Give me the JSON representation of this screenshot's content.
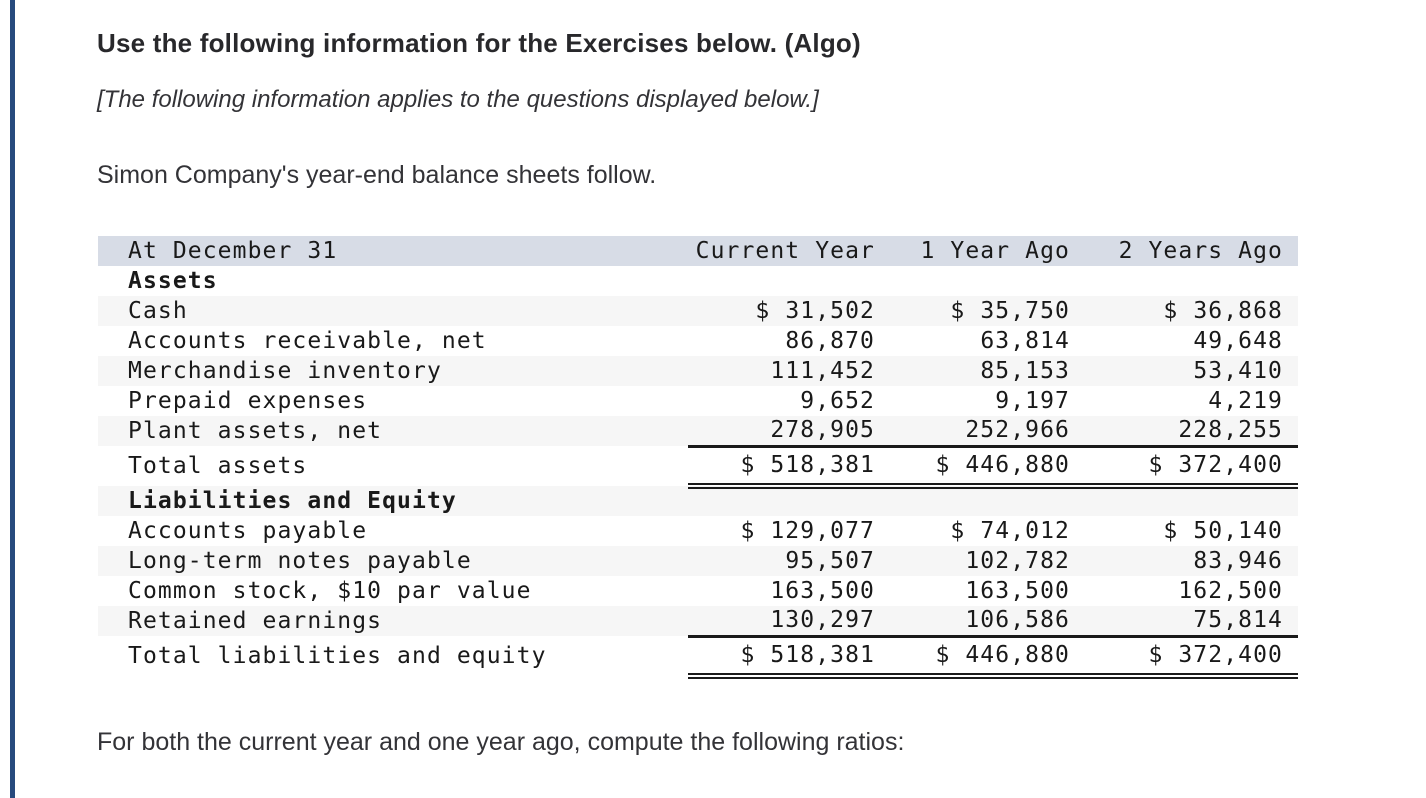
{
  "colors": {
    "accent_bar": "#274a7d",
    "table_header_bg": "#d7dce6",
    "table_stripe_bg": "#f6f6f6"
  },
  "intro": {
    "title": "Use the following information for the Exercises below. (Algo)",
    "note": "[The following information applies to the questions displayed below.]",
    "lead": "Simon Company's year-end balance sheets follow."
  },
  "balance_sheet": {
    "columns": [
      "At December 31",
      "Current Year",
      "1 Year Ago",
      "2 Years Ago"
    ],
    "rows": [
      {
        "label": "Assets",
        "style": "section",
        "values": [
          "",
          "",
          ""
        ]
      },
      {
        "label": "Cash",
        "style": "",
        "values": [
          "$ 31,502",
          "$ 35,750",
          "$ 36,868"
        ]
      },
      {
        "label": "Accounts receivable, net",
        "style": "",
        "values": [
          "86,870",
          "63,814",
          "49,648"
        ]
      },
      {
        "label": "Merchandise inventory",
        "style": "",
        "values": [
          "111,452",
          "85,153",
          "53,410"
        ]
      },
      {
        "label": "Prepaid expenses",
        "style": "",
        "values": [
          "9,652",
          "9,197",
          "4,219"
        ]
      },
      {
        "label": "Plant assets, net",
        "style": "rule-below",
        "values": [
          "278,905",
          "252,966",
          "228,255"
        ]
      },
      {
        "label": "Total assets",
        "style": "total",
        "values": [
          "$ 518,381",
          "$ 446,880",
          "$ 372,400"
        ]
      },
      {
        "label": "Liabilities and Equity",
        "style": "section",
        "values": [
          "",
          "",
          ""
        ]
      },
      {
        "label": "Accounts payable",
        "style": "",
        "values": [
          "$ 129,077",
          "$ 74,012",
          "$ 50,140"
        ]
      },
      {
        "label": "Long-term notes payable",
        "style": "",
        "values": [
          "95,507",
          "102,782",
          "83,946"
        ]
      },
      {
        "label": "Common stock, $10 par value",
        "style": "",
        "values": [
          "163,500",
          "163,500",
          "162,500"
        ]
      },
      {
        "label": "Retained earnings",
        "style": "rule-below",
        "values": [
          "130,297",
          "106,586",
          "75,814"
        ]
      },
      {
        "label": "Total liabilities and equity",
        "style": "total",
        "values": [
          "$ 518,381",
          "$ 446,880",
          "$ 372,400"
        ]
      }
    ]
  },
  "footer": {
    "text": "For both the current year and one year ago, compute the following ratios:"
  }
}
